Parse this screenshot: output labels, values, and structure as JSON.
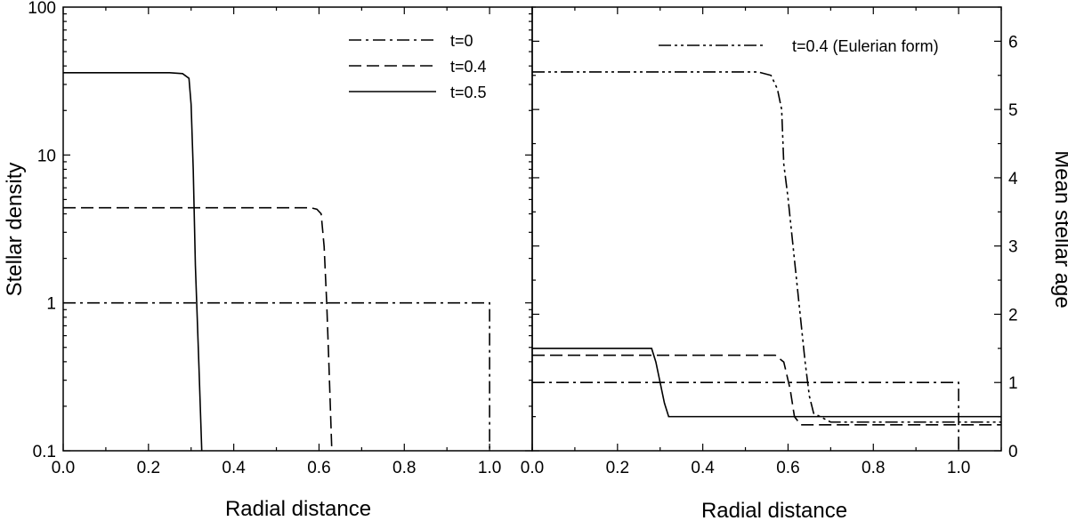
{
  "chart_data": [
    {
      "type": "line",
      "xlabel": "Radial distance",
      "ylabel": "Stellar density",
      "yscale": "log",
      "xlim": [
        0.0,
        1.1
      ],
      "ylim": [
        0.1,
        100
      ],
      "xticks": [
        "0.0",
        "0.2",
        "0.4",
        "0.6",
        "0.8",
        "1.0"
      ],
      "yticks": [
        "0.1",
        "1",
        "10",
        "100"
      ],
      "legend": "top-right",
      "series": [
        {
          "name": "t=0",
          "dash": "dashdot",
          "x": [
            0.0,
            1.0,
            1.0
          ],
          "y": [
            1.0,
            1.0,
            0.1
          ]
        },
        {
          "name": "t=0.4",
          "dash": "dashed",
          "x": [
            0.0,
            0.58,
            0.595,
            0.605,
            0.612,
            0.618,
            0.623,
            0.63
          ],
          "y": [
            4.4,
            4.4,
            4.3,
            4.0,
            2.4,
            1.0,
            0.4,
            0.1
          ]
        },
        {
          "name": "t=0.5",
          "dash": "solid",
          "x": [
            0.0,
            0.25,
            0.28,
            0.295,
            0.3,
            0.305,
            0.31,
            0.318,
            0.325
          ],
          "y": [
            36,
            36,
            35.5,
            33,
            22,
            8,
            1.8,
            0.4,
            0.1
          ]
        }
      ]
    },
    {
      "type": "line",
      "xlabel": "Radial distance",
      "ylabel": "Mean stellar age",
      "ylim": [
        0,
        6.5
      ],
      "yaxis_side": "right",
      "xlim": [
        0.0,
        1.1
      ],
      "xticks": [
        "0.0",
        "0.2",
        "0.4",
        "0.6",
        "0.8",
        "1.0"
      ],
      "yticks": [
        "0",
        "1",
        "2",
        "3",
        "4",
        "5",
        "6"
      ],
      "legend": "top-right",
      "series": [
        {
          "name": "t=0.4 (Eulerian form)",
          "dash": "dashdotdot",
          "x": [
            0.0,
            0.53,
            0.56,
            0.575,
            0.585,
            0.59,
            0.6,
            0.62,
            0.64,
            0.65,
            0.66,
            0.7,
            1.1
          ],
          "y": [
            5.55,
            5.55,
            5.5,
            5.3,
            5.0,
            4.2,
            3.7,
            2.5,
            1.3,
            0.8,
            0.55,
            0.42,
            0.42
          ]
        },
        {
          "name": "",
          "dash": "dashdot",
          "x": [
            0.0,
            1.0,
            1.0
          ],
          "y": [
            1.0,
            1.0,
            0.0
          ]
        },
        {
          "name": "",
          "dash": "dashed",
          "x": [
            0.0,
            0.57,
            0.59,
            0.605,
            0.615,
            0.63,
            0.7,
            1.1
          ],
          "y": [
            1.4,
            1.4,
            1.3,
            0.9,
            0.5,
            0.38,
            0.38,
            0.38
          ]
        },
        {
          "name": "",
          "dash": "solid",
          "x": [
            0.0,
            0.28,
            0.29,
            0.3,
            0.31,
            0.32,
            0.35,
            1.1
          ],
          "y": [
            1.5,
            1.5,
            1.3,
            1.0,
            0.7,
            0.5,
            0.5,
            0.5
          ]
        }
      ]
    }
  ]
}
